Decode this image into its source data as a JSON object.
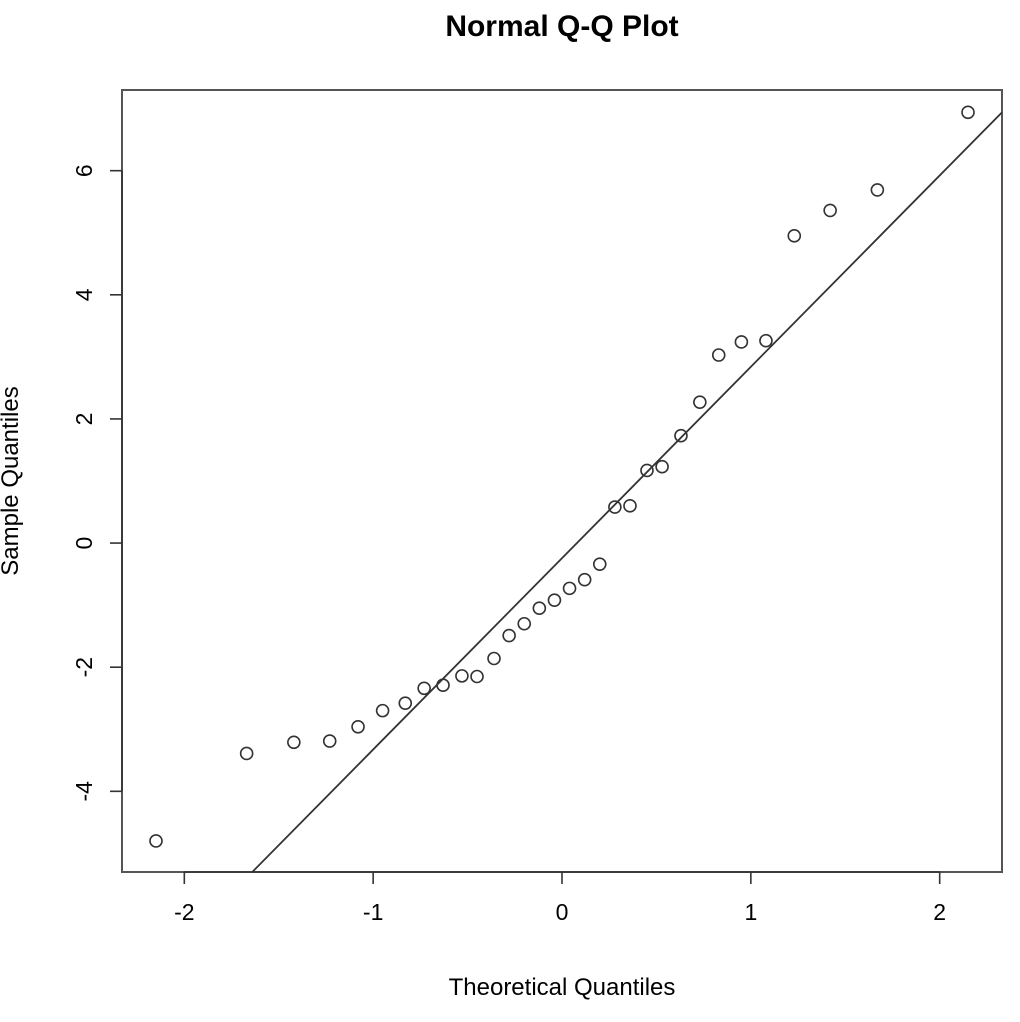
{
  "chart_data": {
    "type": "scatter",
    "title": "Normal Q-Q Plot",
    "xlabel": "Theoretical Quantiles",
    "ylabel": "Sample Quantiles",
    "xlim": [
      -2.33,
      2.33
    ],
    "ylim": [
      -5.3,
      7.3
    ],
    "x_ticks": [
      -2,
      -1,
      0,
      1,
      2
    ],
    "x_tick_labels": [
      "-2",
      "-1",
      "0",
      "1",
      "2"
    ],
    "y_ticks": [
      -4,
      -2,
      0,
      2,
      4,
      6
    ],
    "y_tick_labels": [
      "-4",
      "-2",
      "0",
      "2",
      "4",
      "6"
    ],
    "grid": false,
    "series": [
      {
        "x": [
          -2.15,
          -1.67,
          -1.42,
          -1.23,
          -1.08,
          -0.95,
          -0.83,
          -0.73,
          -0.63,
          -0.53,
          -0.45,
          -0.36,
          -0.28,
          -0.2,
          -0.12,
          -0.04,
          0.04,
          0.12,
          0.2,
          0.28,
          0.36,
          0.45,
          0.53,
          0.63,
          0.73,
          0.83,
          0.95,
          1.08,
          1.23,
          1.42,
          1.67,
          2.15
        ],
        "y": [
          -4.8,
          -3.39,
          -3.21,
          -3.19,
          -2.96,
          -2.7,
          -2.58,
          -2.34,
          -2.29,
          -2.14,
          -2.15,
          -1.86,
          -1.49,
          -1.3,
          -1.05,
          -0.92,
          -0.73,
          -0.59,
          -0.34,
          0.58,
          0.6,
          1.17,
          1.23,
          1.73,
          2.27,
          3.03,
          3.24,
          3.26,
          4.95,
          5.36,
          5.69,
          6.94
        ]
      }
    ],
    "reference_line": {
      "x1": -1.64,
      "y1": -5.3,
      "x2": 2.33,
      "y2": 6.94
    }
  }
}
